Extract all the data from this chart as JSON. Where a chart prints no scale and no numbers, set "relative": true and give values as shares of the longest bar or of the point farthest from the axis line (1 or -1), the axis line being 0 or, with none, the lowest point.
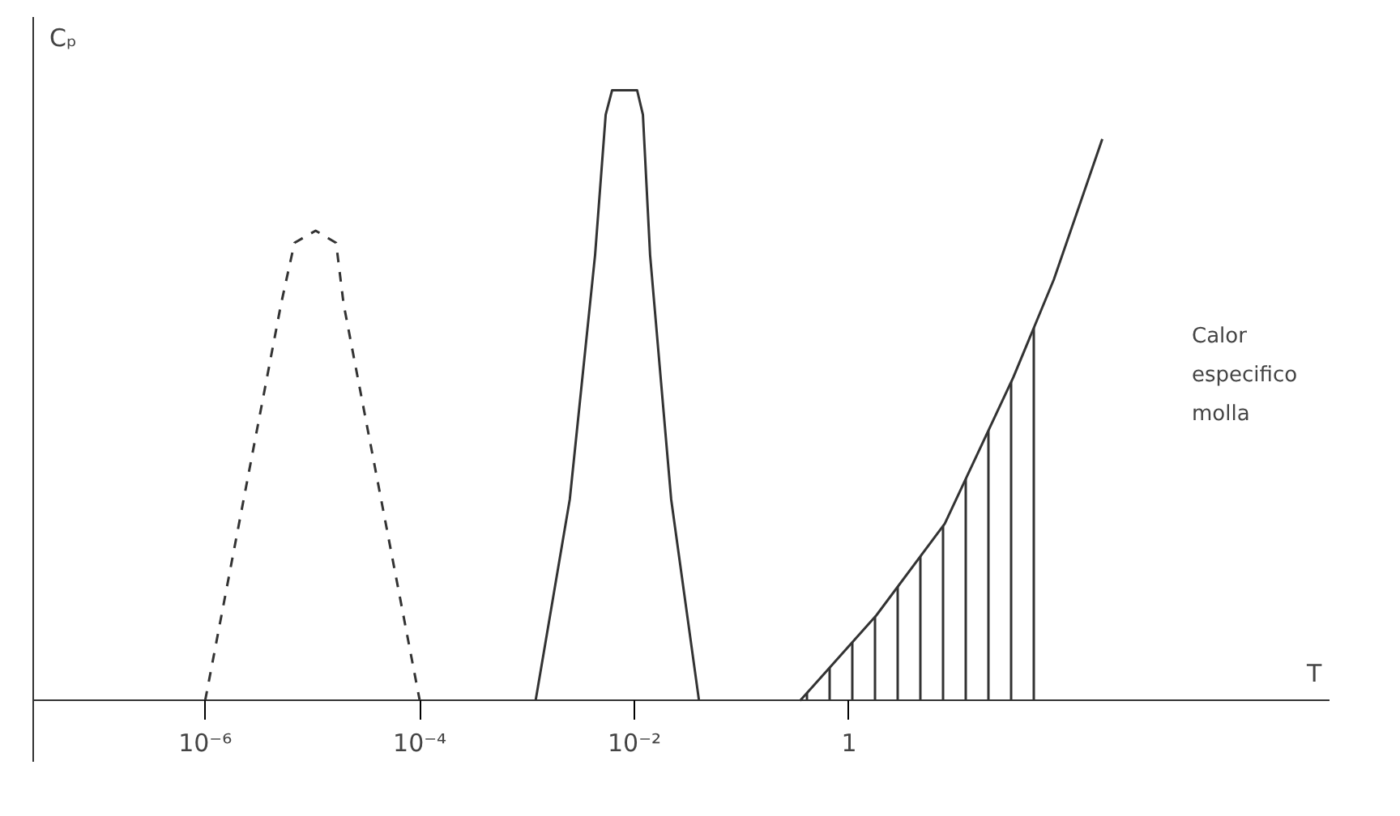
{
  "chart_data": {
    "type": "line",
    "relative": true,
    "log": "x",
    "grid": false,
    "tick_labels": "x",
    "marker": "none",
    "xlabel": "T",
    "ylabel": "Cₚ",
    "xlim": [
      2.5e-08,
      30000
    ],
    "xticks": [
      {
        "value": 1e-06,
        "label": "10⁻⁶"
      },
      {
        "value": 0.0001,
        "label": "10⁻⁴"
      },
      {
        "value": 0.01,
        "label": "10⁻²"
      },
      1
    ],
    "series": [
      {
        "color": "#333333",
        "line_style": "dashed",
        "x": [
          1e-06,
          5.1e-06,
          6.8e-06,
          1.07e-05,
          1.66e-05,
          1.95e-05,
          0.0001
        ],
        "values": [
          0,
          0.65,
          0.75,
          0.77,
          0.75,
          0.65,
          0
        ]
      },
      {
        "color": "#333333",
        "line_style": "solid",
        "x": [
          0.0012,
          0.0025,
          0.0043,
          0.0054,
          0.0062,
          0.0106,
          0.012,
          0.014,
          0.022,
          0.04
        ],
        "values": [
          0,
          0.33,
          0.73,
          0.96,
          1,
          1,
          0.96,
          0.73,
          0.33,
          0
        ]
      },
      {
        "color": "#333333",
        "line_style": "solid",
        "x": [
          0.35,
          1.8,
          7.8,
          34,
          81,
          229
        ],
        "values": [
          0,
          0.14,
          0.29,
          0.53,
          0.69,
          0.92
        ]
      },
      {
        "type": "area",
        "color": "#333333",
        "x": [
          0.35,
          1.8,
          7.8,
          34,
          71
        ],
        "values": [
          0,
          0.14,
          0.29,
          0.53,
          0.66
        ]
      }
    ],
    "annotations": [
      "Calor\nespecifico\nmolla"
    ]
  }
}
